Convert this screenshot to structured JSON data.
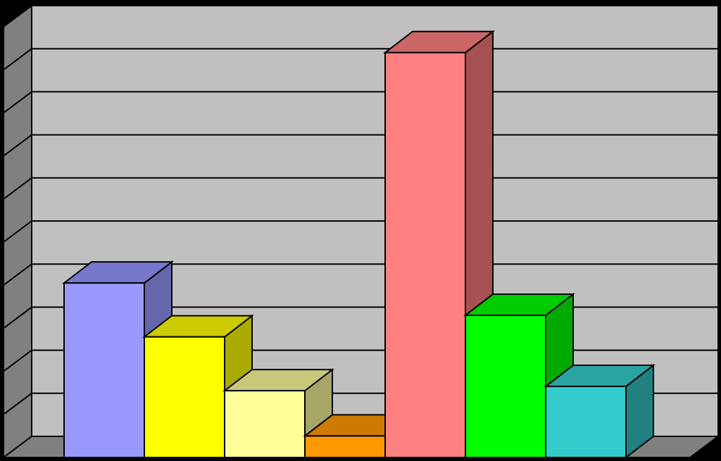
{
  "chart_data": {
    "type": "bar",
    "style": "3d-clustered-column",
    "title": "",
    "xlabel": "",
    "ylabel": "",
    "ylim": [
      0,
      10
    ],
    "grid": true,
    "legend": "none",
    "categories": [
      "",
      "",
      "",
      "",
      "",
      "",
      ""
    ],
    "values": [
      4.05,
      2.8,
      1.55,
      0.5,
      9.4,
      3.3,
      1.65
    ],
    "colors": {
      "front": [
        "#9999ff",
        "#ffff00",
        "#ffff99",
        "#ff9900",
        "#ff8080",
        "#00ff00",
        "#33cccc"
      ],
      "top": [
        "#7777cc",
        "#cccc00",
        "#c8c87a",
        "#cc7a00",
        "#cc6666",
        "#00cc00",
        "#29a3a3"
      ],
      "side": [
        "#6666aa",
        "#aaaa00",
        "#a6a666",
        "#a86400",
        "#a65252",
        "#00aa00",
        "#218080"
      ]
    },
    "background": {
      "wall": "#c0c0c0",
      "side_wall": "#808080",
      "floor": "#808080",
      "page": "#000000"
    }
  }
}
